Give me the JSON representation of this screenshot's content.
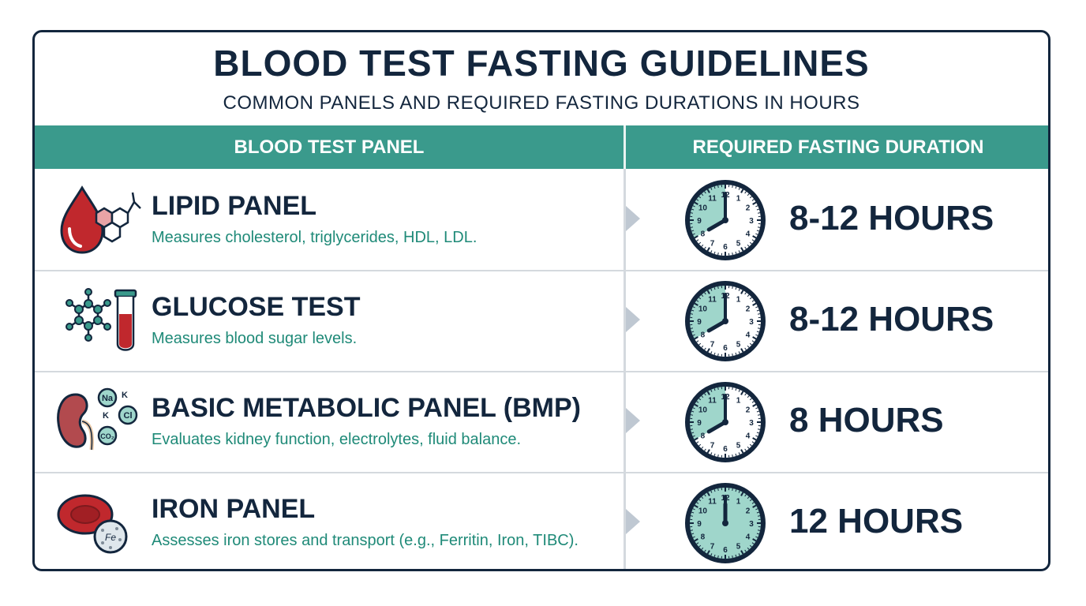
{
  "title": "BLOOD TEST FASTING GUIDELINES",
  "subtitle": "COMMON PANELS AND REQUIRED FASTING DURATIONS IN HOURS",
  "table": {
    "headers": [
      "BLOOD TEST PANEL",
      "REQUIRED FASTING DURATION"
    ],
    "rows": [
      {
        "name": "LIPID PANEL",
        "description": "Measures cholesterol, triglycerides, HDL, LDL.",
        "duration": "8-12 HOURS",
        "icon": "blood-drop-molecule-icon",
        "clock_hours_shaded": [
          8,
          12
        ]
      },
      {
        "name": "GLUCOSE TEST",
        "description": "Measures blood sugar levels.",
        "duration": "8-12 HOURS",
        "icon": "molecule-test-tube-icon",
        "clock_hours_shaded": [
          8,
          12
        ]
      },
      {
        "name": "BASIC METABOLIC PANEL (BMP)",
        "description": "Evaluates kidney function, electrolytes, fluid balance.",
        "duration": "8 HOURS",
        "icon": "kidney-electrolytes-icon",
        "icon_labels": [
          "Na",
          "K",
          "K",
          "Cl",
          "CO₂"
        ],
        "clock_hours_shaded": [
          8,
          8
        ]
      },
      {
        "name": "IRON PANEL",
        "description": "Assesses iron stores and transport (e.g., Ferritin, Iron, TIBC).",
        "duration": "12 HOURS",
        "icon": "red-blood-cell-iron-icon",
        "icon_labels": [
          "Fe"
        ],
        "clock_hours_shaded": [
          12,
          12
        ]
      }
    ]
  },
  "clock_numbers": [
    "12",
    "1",
    "2",
    "3",
    "4",
    "5",
    "6",
    "7",
    "8",
    "9",
    "10",
    "11"
  ],
  "colors": {
    "navy": "#13263d",
    "teal_header": "#3a9a8c",
    "teal_text": "#1f8a78",
    "clock_fill": "#9fd6cb",
    "blood_red": "#c0282d",
    "divider": "#d4d9de"
  }
}
